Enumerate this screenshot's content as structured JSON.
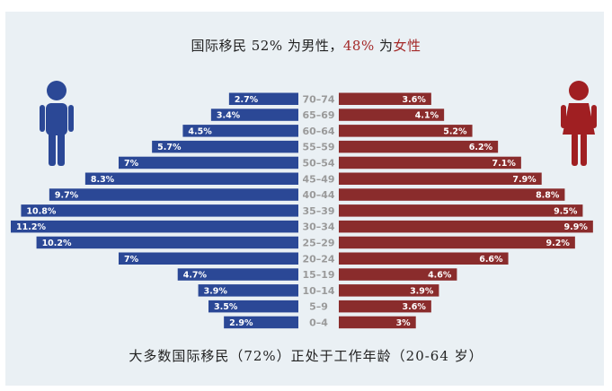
{
  "title": {
    "prefix": "国际移民 52% 为男性，",
    "female_pct": "48%",
    "mid": " 为",
    "female_word": "女性"
  },
  "footer": "大多数国际移民（72%）正处于工作年龄（20-64 岁）",
  "colors": {
    "male": "#2b4896",
    "female": "#8a2c2c",
    "age_label": "#9a9a9a",
    "female_text": "#a42a2a"
  },
  "icons": {
    "male": "male-person-icon",
    "female": "female-person-icon"
  },
  "chart_data": {
    "type": "bar",
    "orientation": "horizontal-pyramid",
    "categories": [
      "70–74",
      "65–69",
      "60–64",
      "55–59",
      "50–54",
      "45–49",
      "40–44",
      "35–39",
      "30–34",
      "25–29",
      "20–24",
      "15–19",
      "10–14",
      "5–9",
      "0–4"
    ],
    "series": [
      {
        "name": "male",
        "values": [
          2.7,
          3.4,
          4.5,
          5.7,
          7,
          8.3,
          9.7,
          10.8,
          11.2,
          10.2,
          7,
          4.7,
          3.9,
          3.5,
          2.9
        ],
        "labels": [
          "2.7%",
          "3.4%",
          "4.5%",
          "5.7%",
          "7%",
          "8.3%",
          "9.7%",
          "10.8%",
          "11.2%",
          "10.2%",
          "7%",
          "4.7%",
          "3.9%",
          "3.5%",
          "2.9%"
        ]
      },
      {
        "name": "female",
        "values": [
          3.6,
          4.1,
          5.2,
          6.2,
          7.1,
          7.9,
          8.8,
          9.5,
          9.9,
          9.2,
          6.6,
          4.6,
          3.9,
          3.6,
          3
        ],
        "labels": [
          "3.6%",
          "4.1%",
          "5.2%",
          "6.2%",
          "7.1%",
          "7.9%",
          "8.8%",
          "9.5%",
          "9.9%",
          "9.2%",
          "6.6%",
          "4.6%",
          "3.9%",
          "3.6%",
          "3%"
        ]
      }
    ],
    "xlim": [
      0,
      11.2
    ]
  }
}
